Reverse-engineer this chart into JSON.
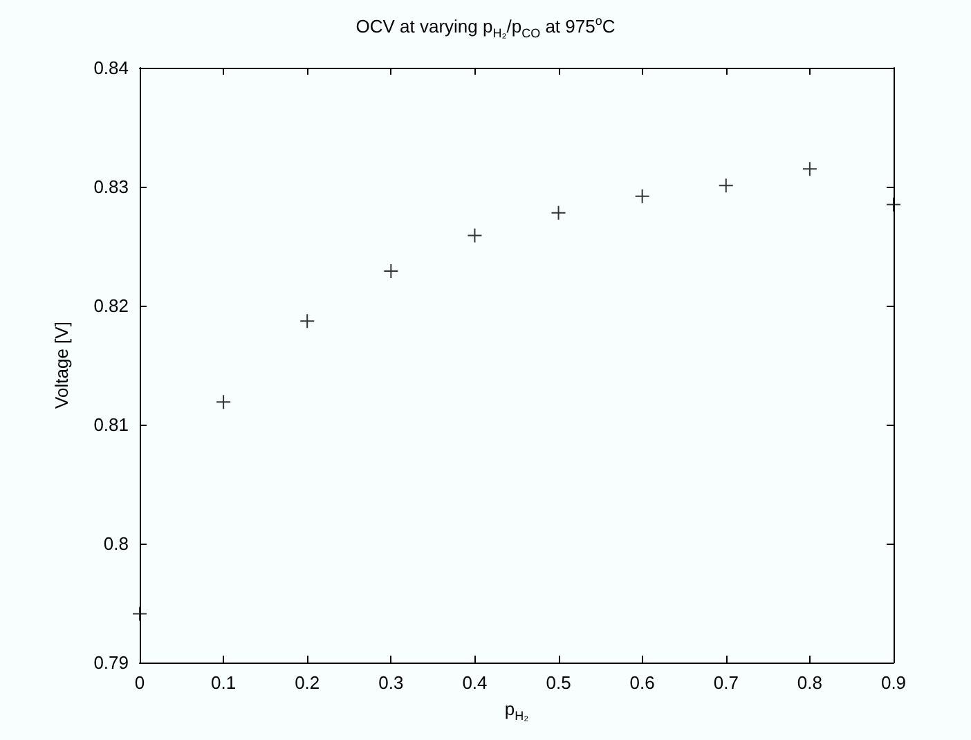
{
  "chart_data": {
    "type": "scatter",
    "title": "OCV at varying p$_{H₂}$/p$_{CO}$ at 975$^{o}$C",
    "xlabel": "p$_{H₂}$",
    "ylabel": "Voltage [V]",
    "x": [
      0,
      0.1,
      0.2,
      0.3,
      0.4,
      0.5,
      0.6,
      0.7,
      0.8,
      0.9
    ],
    "values": [
      0.7941,
      0.8119,
      0.8187,
      0.8229,
      0.8259,
      0.8278,
      0.8292,
      0.8301,
      0.8315,
      0.8285
    ],
    "color": "#000000",
    "marker": "cross",
    "grid": false,
    "xlim": [
      0,
      0.9
    ],
    "xticks": [
      0,
      0.1,
      0.2,
      0.3,
      0.4,
      0.5,
      0.6,
      0.7,
      0.8,
      0.9
    ],
    "ylim": [
      0.79,
      0.84
    ],
    "yticks": [
      0.79,
      0.8,
      0.81,
      0.82,
      0.83,
      0.84
    ]
  }
}
